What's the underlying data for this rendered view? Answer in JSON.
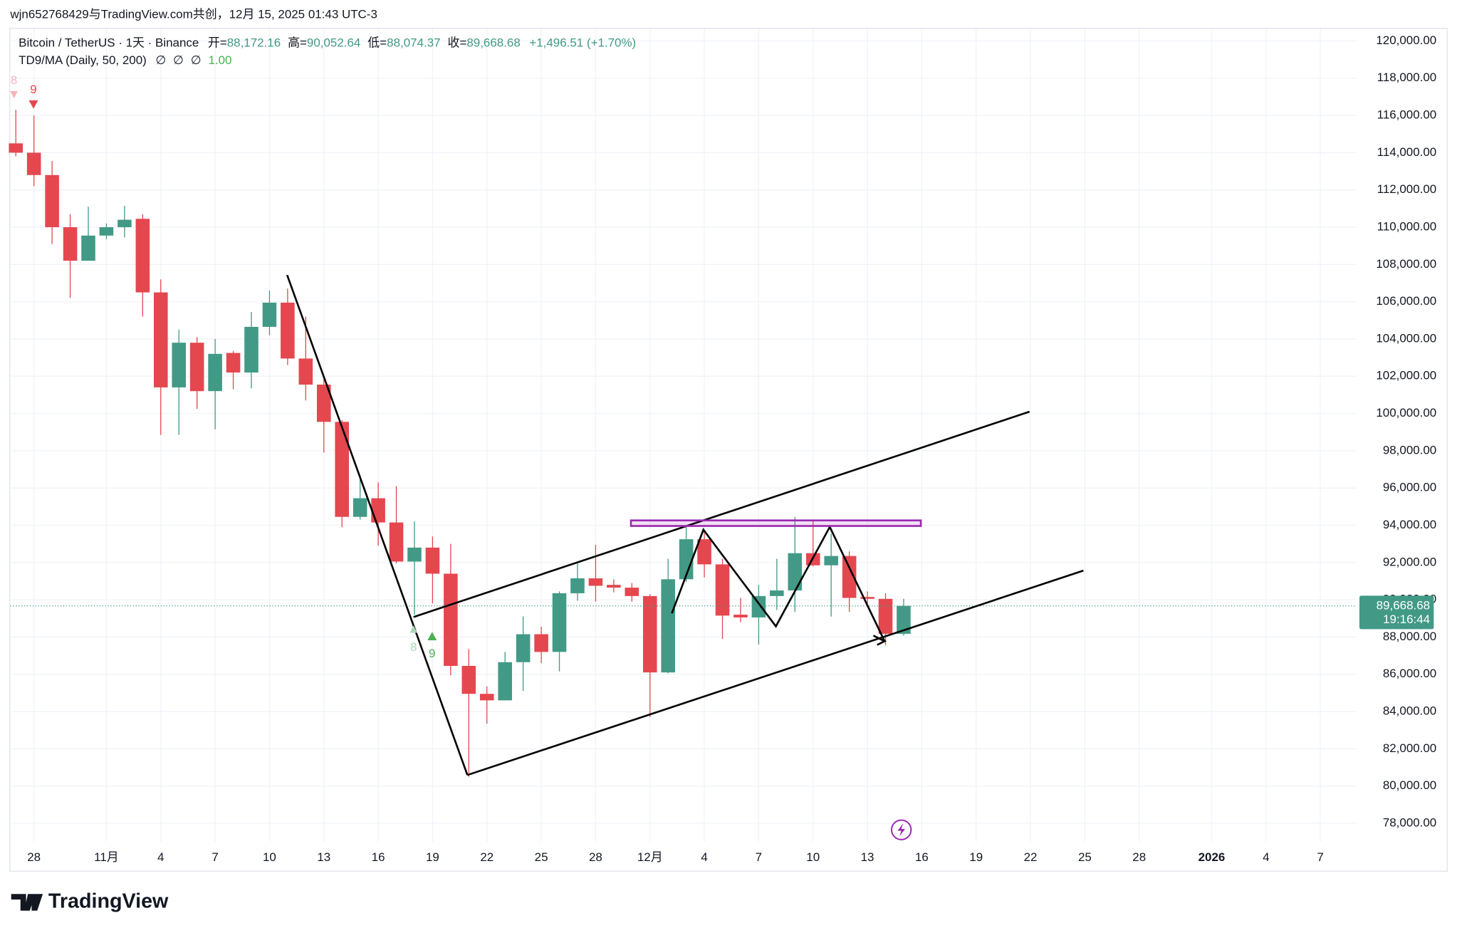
{
  "watermark": "wjn652768429与TradingView.com共创，12月 15, 2025 01:43 UTC-3",
  "brand": "TradingView",
  "chart_data": {
    "type": "candlestick",
    "title": "Bitcoin / TetherUS · 1天 · Binance",
    "ohlc_legend": [
      {
        "label": "开=",
        "value": "88,172.16"
      },
      {
        "label": "高=",
        "value": "90,052.64"
      },
      {
        "label": "低=",
        "value": "88,074.37"
      },
      {
        "label": "收=",
        "value": "89,668.68"
      }
    ],
    "change": "+1,496.51 (+1.70%)",
    "indicator": "TD9/MA (Daily, 50, 200)",
    "indicator_values": [
      "∅",
      "∅",
      "∅",
      "1.00"
    ],
    "annotations": [
      "8",
      "9",
      "8",
      "9"
    ],
    "last_price_label": "89,668.68",
    "countdown": "19:16:44",
    "up_color": "#429a86",
    "down_color": "#e5474f",
    "grid": true,
    "categories": [
      null,
      "28",
      null,
      null,
      null,
      "11月",
      null,
      null,
      "4",
      null,
      null,
      "7",
      null,
      null,
      "10",
      null,
      null,
      "13",
      null,
      null,
      "16",
      null,
      null,
      "19",
      null,
      null,
      "22",
      null,
      null,
      "25",
      null,
      null,
      "28",
      null,
      null,
      "12月",
      null,
      null,
      "4",
      null,
      null,
      "7",
      null,
      null,
      "10",
      null,
      null,
      "13",
      null,
      null,
      "16",
      null,
      null,
      "19",
      null,
      null,
      "22",
      null,
      null,
      "25",
      null,
      null,
      "28",
      null,
      null,
      null,
      "2026",
      null,
      null,
      "4",
      null,
      null,
      "7",
      null
    ],
    "open": [
      114500,
      114000,
      112800,
      110000,
      108200,
      109550,
      110000,
      110450,
      106500,
      101400,
      103800,
      101200,
      103250,
      102200,
      104650,
      105950,
      102950,
      101550,
      99550,
      94450,
      95450,
      94150,
      92050,
      92800,
      91400,
      86450,
      84950,
      84600,
      86650,
      88150,
      87200,
      90350,
      91150,
      90800,
      90650,
      90200,
      86100,
      91100,
      93250,
      91900,
      89200,
      89050,
      90200,
      90500,
      92500,
      91850,
      92350,
      90150,
      90050,
      88172.16,
      null,
      null,
      null,
      null,
      null,
      null,
      null,
      null,
      null,
      null,
      null,
      null,
      null,
      null,
      null,
      null,
      null,
      null,
      null,
      null,
      null,
      null,
      null,
      null
    ],
    "high": [
      116300,
      116000,
      113550,
      110700,
      111100,
      110200,
      111150,
      110700,
      107200,
      104500,
      104100,
      104000,
      103350,
      105450,
      106600,
      106700,
      105200,
      101850,
      99650,
      96700,
      96300,
      96100,
      94200,
      93400,
      93000,
      87350,
      85350,
      87200,
      89100,
      88550,
      90450,
      91950,
      92950,
      91100,
      90900,
      90300,
      92200,
      93950,
      93700,
      92200,
      90100,
      90800,
      92200,
      94450,
      94300,
      93550,
      92600,
      90450,
      90350,
      90052.64,
      null,
      null,
      null,
      null,
      null,
      null,
      null,
      null,
      null,
      null,
      null,
      null,
      null,
      null,
      null,
      null,
      null,
      null,
      null,
      null,
      null,
      null,
      null,
      null
    ],
    "low": [
      113800,
      112200,
      109100,
      106200,
      108200,
      109350,
      109450,
      105200,
      98850,
      98850,
      100250,
      99150,
      101300,
      101350,
      104200,
      102600,
      100700,
      97900,
      93900,
      94300,
      92900,
      91950,
      89200,
      89800,
      85950,
      80500,
      83350,
      84600,
      85100,
      86600,
      86150,
      89950,
      89900,
      90400,
      89900,
      83700,
      86050,
      90950,
      91200,
      87900,
      88800,
      87600,
      89450,
      89350,
      91800,
      89100,
      89350,
      89800,
      87550,
      88074.37,
      null,
      null,
      null,
      null,
      null,
      null,
      null,
      null,
      null,
      null,
      null,
      null,
      null,
      null,
      null,
      null,
      null,
      null,
      null,
      null,
      null,
      null,
      null,
      null
    ],
    "close": [
      114000,
      112800,
      110000,
      108200,
      109550,
      110000,
      110400,
      106500,
      101400,
      103800,
      101200,
      103200,
      102200,
      104650,
      105950,
      102950,
      101550,
      99550,
      94450,
      95450,
      94150,
      92050,
      92800,
      91400,
      86450,
      84950,
      84600,
      86650,
      88150,
      87200,
      90350,
      91150,
      90750,
      90650,
      90200,
      86100,
      91100,
      93250,
      91900,
      89150,
      89050,
      90200,
      90500,
      92500,
      91850,
      92350,
      90100,
      90050,
      88172.16,
      89668.68,
      null,
      null,
      null,
      null,
      null,
      null,
      null,
      null,
      null,
      null,
      null,
      null,
      null,
      null,
      null,
      null,
      null,
      null,
      null,
      null,
      null,
      null,
      null,
      null
    ],
    "ylim": [
      77000,
      120700
    ],
    "yticks": [
      {
        "value": 78000,
        "label": "78,000.00"
      },
      {
        "value": 80000,
        "label": "80,000.00"
      },
      {
        "value": 82000,
        "label": "82,000.00"
      },
      {
        "value": 84000,
        "label": "84,000.00"
      },
      {
        "value": 86000,
        "label": "86,000.00"
      },
      {
        "value": 88000,
        "label": "88,000.00"
      },
      {
        "value": 90000,
        "label": "90,000.00"
      },
      {
        "value": 92000,
        "label": "92,000.00"
      },
      {
        "value": 94000,
        "label": "94,000.00"
      },
      {
        "value": 96000,
        "label": "96,000.00"
      },
      {
        "value": 98000,
        "label": "98,000.00"
      },
      {
        "value": 100000,
        "label": "100,000.00"
      },
      {
        "value": 102000,
        "label": "102,000.00"
      },
      {
        "value": 104000,
        "label": "104,000.00"
      },
      {
        "value": 106000,
        "label": "106,000.00"
      },
      {
        "value": 108000,
        "label": "108,000.00"
      },
      {
        "value": 110000,
        "label": "110,000.00"
      },
      {
        "value": 112000,
        "label": "112,000.00"
      },
      {
        "value": 114000,
        "label": "114,000.00"
      },
      {
        "value": 116000,
        "label": "116,000.00"
      },
      {
        "value": 118000,
        "label": "118,000.00"
      },
      {
        "value": 120000,
        "label": "120,000.00"
      }
    ]
  }
}
